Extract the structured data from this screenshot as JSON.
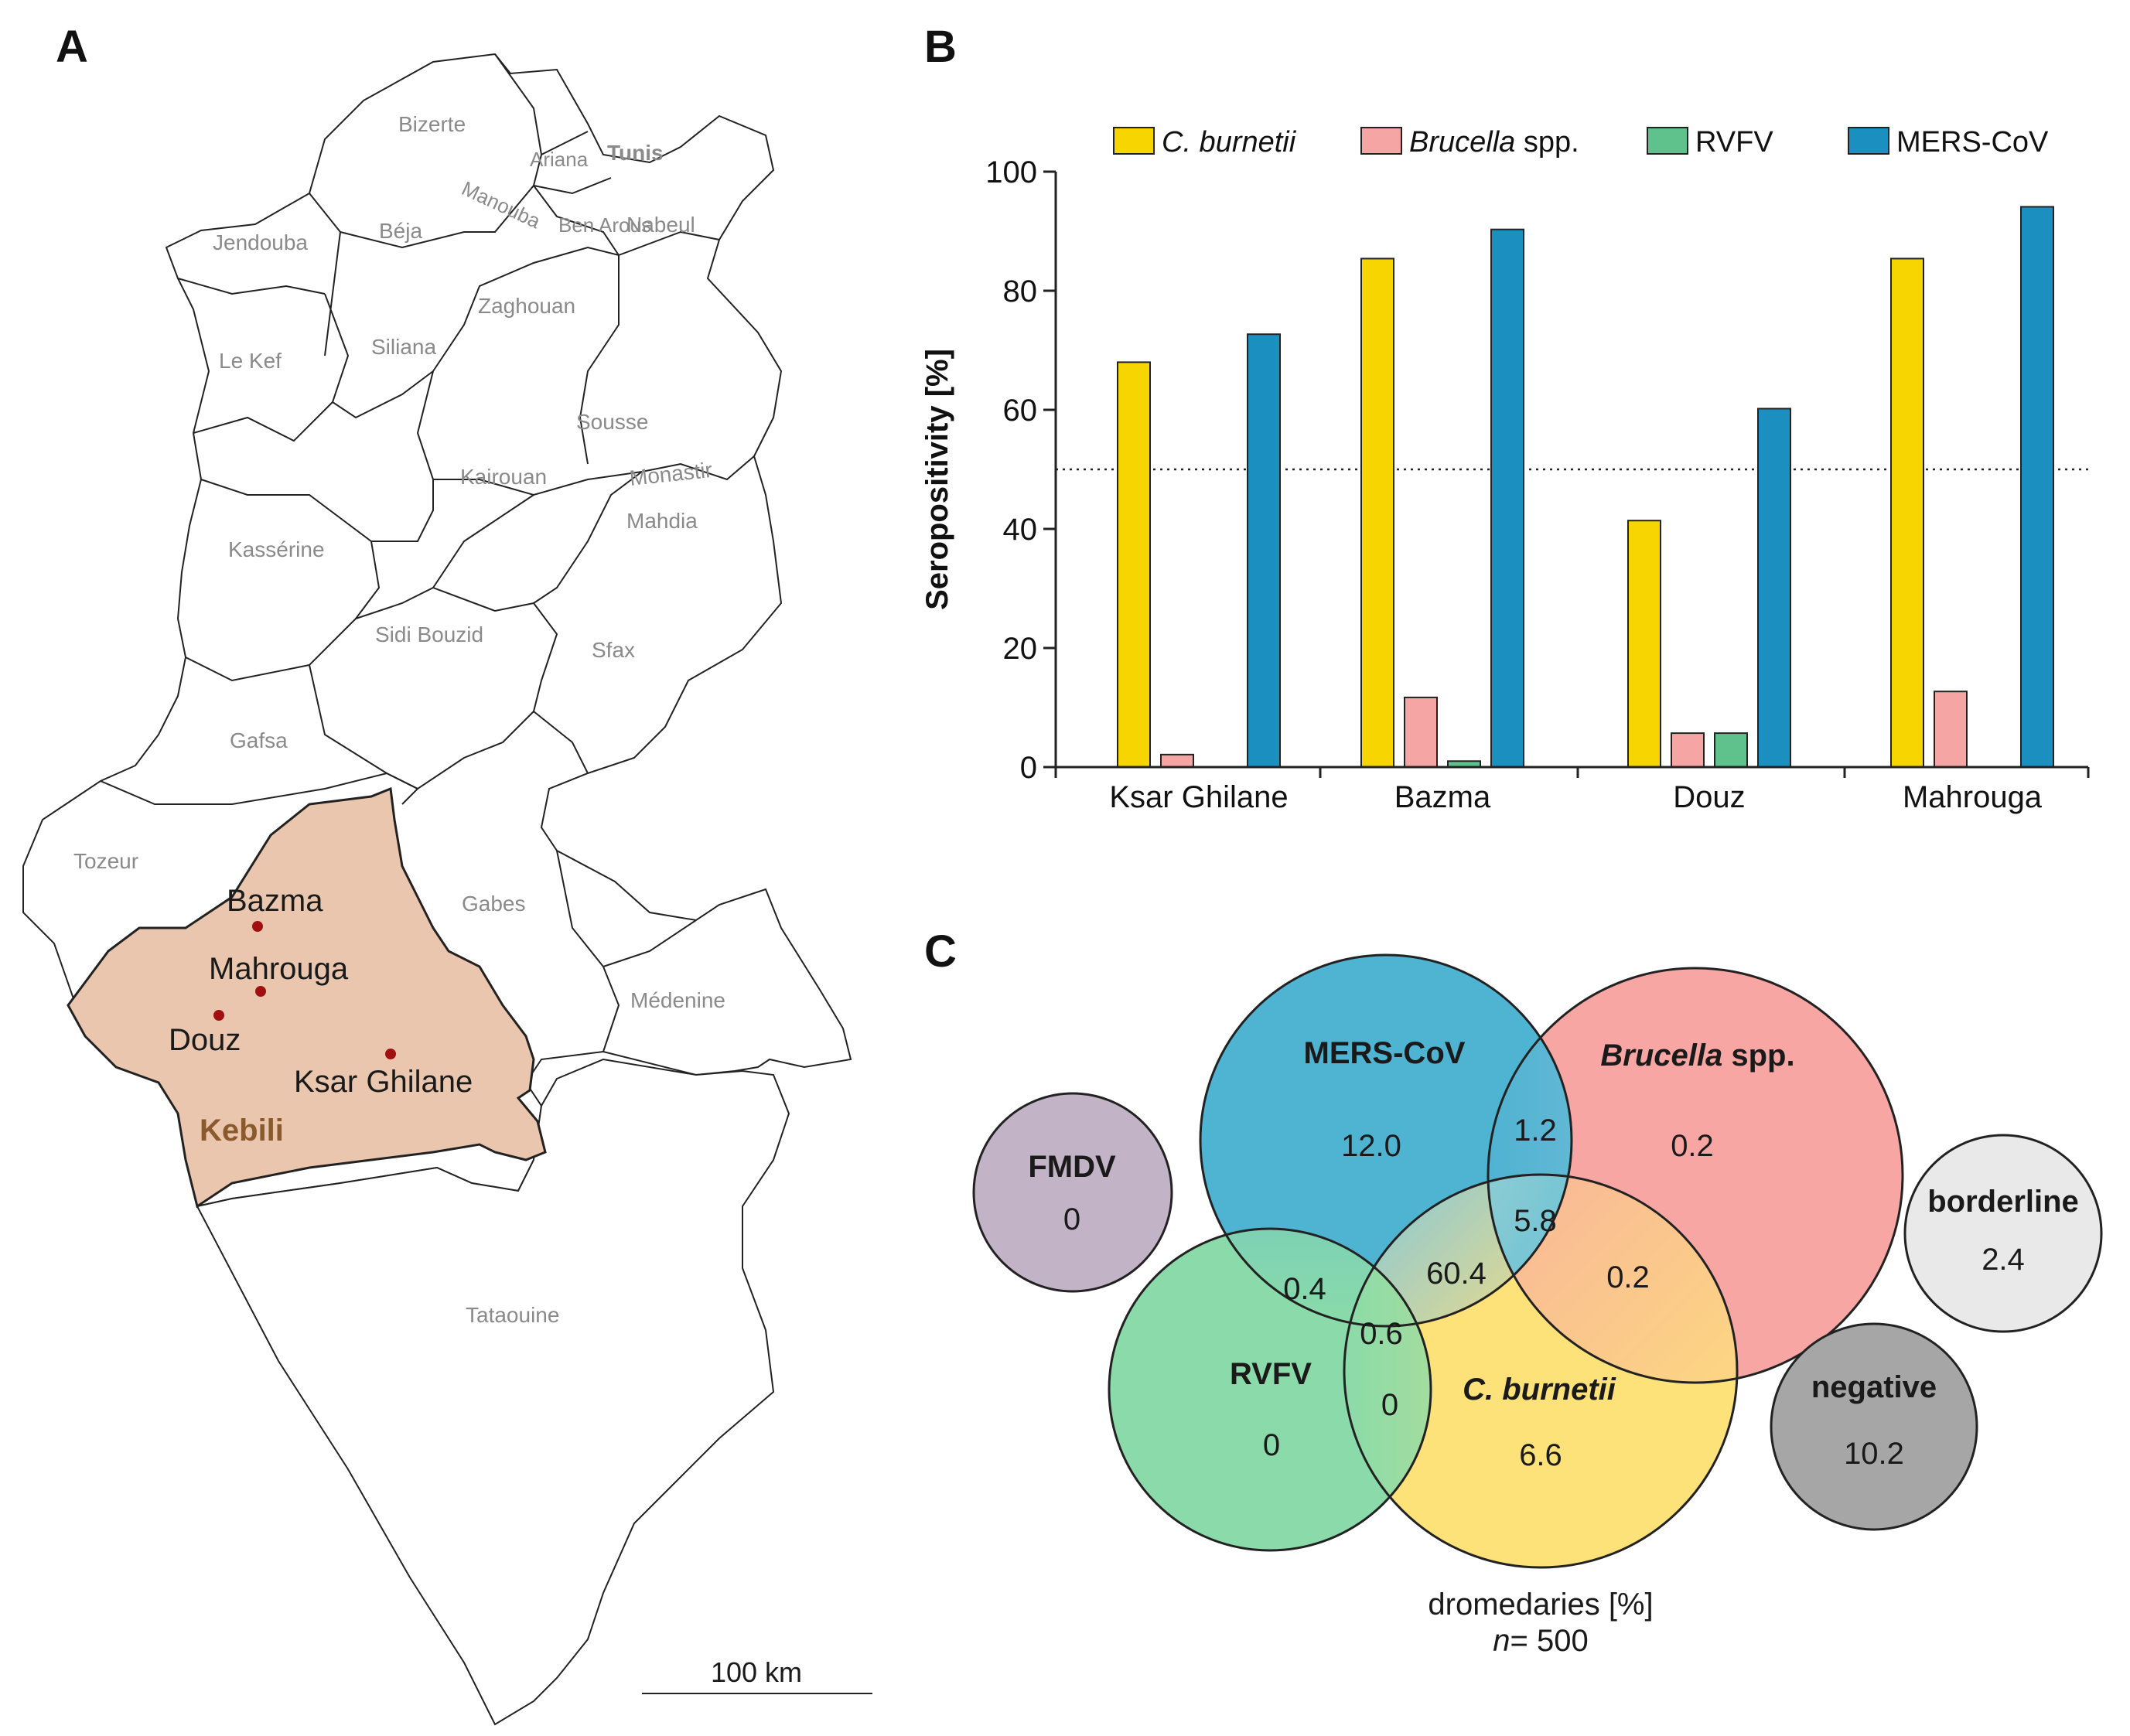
{
  "panels": {
    "a": "A",
    "b": "B",
    "c": "C"
  },
  "map": {
    "regions": [
      {
        "id": "bizerte",
        "name": "Bizerte"
      },
      {
        "id": "ariana",
        "name": "Ariana"
      },
      {
        "id": "tunis",
        "name": "Tunis"
      },
      {
        "id": "manouba",
        "name": "Manouba"
      },
      {
        "id": "ben-arous",
        "name": "Ben Arous"
      },
      {
        "id": "nabeul",
        "name": "Nabeul"
      },
      {
        "id": "jendouba",
        "name": "Jendouba"
      },
      {
        "id": "beja",
        "name": "Béja"
      },
      {
        "id": "zaghouan",
        "name": "Zaghouan"
      },
      {
        "id": "le-kef",
        "name": "Le Kef"
      },
      {
        "id": "siliana",
        "name": "Siliana"
      },
      {
        "id": "sousse",
        "name": "Sousse"
      },
      {
        "id": "kairouan",
        "name": "Kairouan"
      },
      {
        "id": "monastir",
        "name": "Monastir"
      },
      {
        "id": "mahdia",
        "name": "Mahdia"
      },
      {
        "id": "kasserine",
        "name": "Kassérine"
      },
      {
        "id": "sidi-bouzid",
        "name": "Sidi Bouzid"
      },
      {
        "id": "sfax",
        "name": "Sfax"
      },
      {
        "id": "gafsa",
        "name": "Gafsa"
      },
      {
        "id": "tozeur",
        "name": "Tozeur"
      },
      {
        "id": "gabes",
        "name": "Gabes"
      },
      {
        "id": "medenine",
        "name": "Médenine"
      },
      {
        "id": "tataouine",
        "name": "Tataouine"
      }
    ],
    "highlight": {
      "name": "Kebili",
      "color": "#e9c6ad"
    },
    "sites": [
      {
        "id": "bazma",
        "name": "Bazma"
      },
      {
        "id": "mahrouga",
        "name": "Mahrouga"
      },
      {
        "id": "douz",
        "name": "Douz"
      },
      {
        "id": "ksar-ghilane",
        "name": "Ksar Ghilane"
      }
    ],
    "site_dot_color": "#a01010",
    "scale_bar": "100 km"
  },
  "chart_data": [
    {
      "type": "bar",
      "ylabel": "Seropositivity [%]",
      "xlabel": "",
      "ylim": [
        0,
        100
      ],
      "yticks": [
        0,
        20,
        40,
        60,
        80,
        100
      ],
      "reference_line": 50,
      "legend": "top",
      "grid": false,
      "categories": [
        "Ksar Ghilane",
        "Bazma",
        "Douz",
        "Mahrouga"
      ],
      "series": [
        {
          "name": "C. burnetii",
          "italic_part": "C. burnetii",
          "color": "#f6d500",
          "values": [
            68,
            85.4,
            41.4,
            85.4
          ]
        },
        {
          "name": "Brucella spp.",
          "italic_part": "Brucella",
          "color": "#f6a5a5",
          "values": [
            2.1,
            11.7,
            5.7,
            12.7
          ]
        },
        {
          "name": "RVFV",
          "italic_part": "",
          "color": "#5fc18c",
          "values": [
            0,
            1.0,
            5.7,
            0
          ]
        },
        {
          "name": "MERS-CoV",
          "italic_part": "",
          "color": "#1a8fc0",
          "values": [
            72.7,
            90.3,
            60.2,
            94.1
          ]
        }
      ]
    },
    {
      "type": "venn",
      "caption_line1": "dromedaries [%]",
      "caption_n_italic": "n",
      "caption_n_rest": "= 500",
      "sets": [
        {
          "id": "mers",
          "name": "MERS-CoV",
          "color": "#4fb3d2",
          "only": "12.0"
        },
        {
          "id": "brucella",
          "name": "Brucella spp.",
          "color": "#f8a6a4",
          "only": "0.2"
        },
        {
          "id": "rvfv",
          "name": "RVFV",
          "color": "#8adba9",
          "only": "0"
        },
        {
          "id": "cburnetii",
          "name": "C. burnetii",
          "color": "#fde27a",
          "only": "6.6"
        }
      ],
      "intersections": [
        {
          "sets": [
            "mers",
            "brucella"
          ],
          "value": "1.2"
        },
        {
          "sets": [
            "mers",
            "brucella",
            "cburnetii"
          ],
          "value": "5.8"
        },
        {
          "sets": [
            "brucella",
            "cburnetii"
          ],
          "value": "0.2"
        },
        {
          "sets": [
            "mers",
            "cburnetii"
          ],
          "value": "60.4"
        },
        {
          "sets": [
            "mers",
            "rvfv"
          ],
          "value": "0.4"
        },
        {
          "sets": [
            "mers",
            "rvfv",
            "cburnetii"
          ],
          "value": "0.6"
        },
        {
          "sets": [
            "rvfv",
            "cburnetii"
          ],
          "value": "0"
        }
      ],
      "standalone": [
        {
          "id": "fmdv",
          "name": "FMDV",
          "value": "0",
          "color": "#c2b3c6"
        },
        {
          "id": "borderline",
          "name": "borderline",
          "value": "2.4",
          "color": "#e9e9e9"
        },
        {
          "id": "negative",
          "name": "negative",
          "value": "10.2",
          "color": "#a6a6a6"
        }
      ]
    }
  ]
}
